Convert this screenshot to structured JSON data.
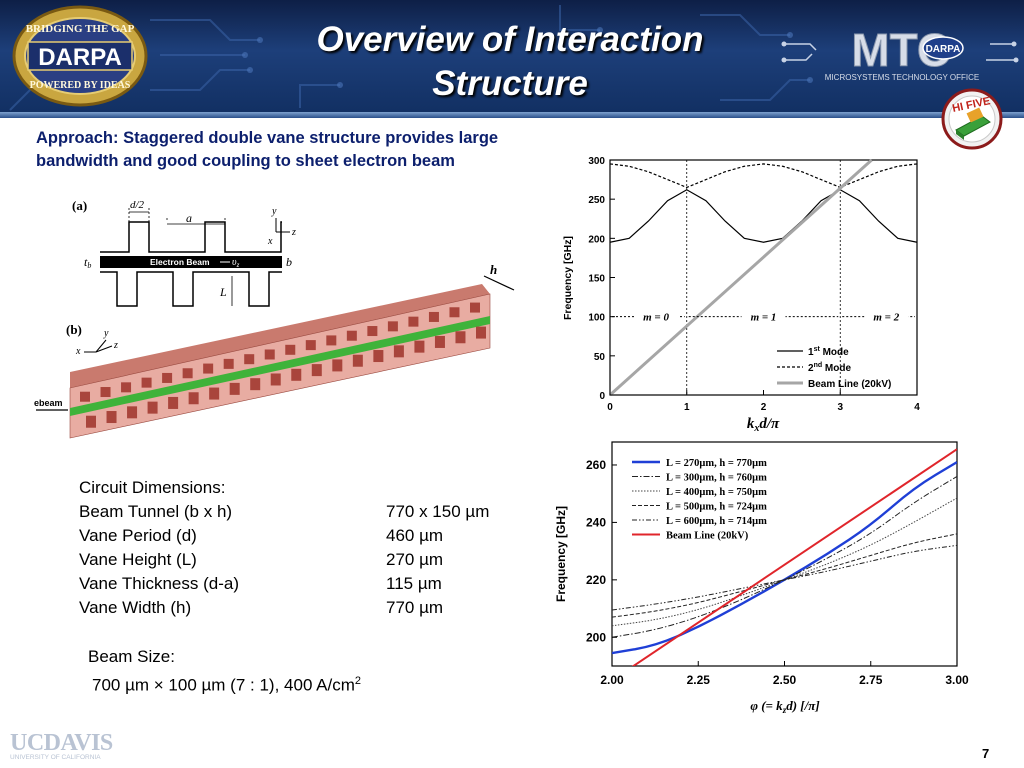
{
  "header": {
    "title_line1": "Overview of  Interaction",
    "title_line2": "Structure",
    "logo_left": {
      "top": "BRIDGING THE GAP",
      "middle": "DARPA",
      "bottom": "POWERED BY IDEAS"
    },
    "logo_right": {
      "mark": "MTO",
      "badge": "DARPA",
      "tagline": "MICROSYSTEMS TECHNOLOGY OFFICE"
    },
    "badge": {
      "text": "HI FIVE"
    }
  },
  "approach": {
    "line1": "Approach: Staggered double vane structure provides large",
    "line2": "bandwidth and good coupling to sheet electron beam"
  },
  "figure_left": {
    "label_a": "(a)",
    "label_b": "(b)",
    "dim_half_d": "d/2",
    "dim_a": "a",
    "axis_y": "y",
    "axis_x": "x",
    "axis_z": "z",
    "dim_tb": "t",
    "dim_tb_sub": "b",
    "dim_b": "b",
    "dim_L": "L",
    "beam_label": "Electron Beam",
    "beam_velocity": "υ",
    "beam_velocity_sub": "z",
    "dim_h": "h",
    "ebeam_label": "ebeam"
  },
  "dispersion_chart": {
    "ylabel": "Frequency [GHz]",
    "xlabel_k": "k",
    "xlabel_sub": "x",
    "xlabel_rest": "d/π",
    "xticks": [
      "0",
      "1",
      "2",
      "3",
      "4"
    ],
    "yticks": [
      "0",
      "50",
      "100",
      "150",
      "200",
      "250",
      "300"
    ],
    "region_labels": [
      "m = 0",
      "m = 1",
      "m = 2"
    ],
    "legend": [
      {
        "pre": "1",
        "sup": "st",
        "post": " Mode"
      },
      {
        "pre": "2",
        "sup": "nd",
        "post": " Mode"
      },
      {
        "pre": "Beam Line (20kV)",
        "sup": "",
        "post": ""
      }
    ]
  },
  "comparison_chart": {
    "ylabel": "Frequency [GHz]",
    "xlabel": "φ (= k",
    "xlabel_sub": "z",
    "xlabel_rest": "d)  [/π]",
    "xticks": [
      "2.00",
      "2.25",
      "2.50",
      "2.75",
      "3.00"
    ],
    "yticks": [
      "200",
      "220",
      "240",
      "260"
    ],
    "legend": [
      "L = 270μm, h = 770μm",
      "L = 300μm, h = 760μm",
      "L = 400μm, h = 750μm",
      "L = 500μm, h = 724μm",
      "L = 600μm, h = 714μm",
      "Beam Line (20kV)"
    ],
    "colors": {
      "series1": "#1f3fd6",
      "beam_line": "#e0252b"
    }
  },
  "dimensions": {
    "heading": "Circuit Dimensions:",
    "rows": [
      {
        "label": "Beam Tunnel (b x h)",
        "value": "770 x 150 µm"
      },
      {
        "label": "Vane Period (d)",
        "value": "460 µm"
      },
      {
        "label": "Vane Height (L)",
        "value": "270 µm"
      },
      {
        "label": "Vane Thickness (d-a)",
        "value": "115 µm"
      },
      {
        "label": "Vane Width (h)",
        "value": "770 µm"
      }
    ]
  },
  "beam_size": {
    "heading": "Beam Size:",
    "value": "700 µm × 100 µm (7 : 1), 400 A/cm",
    "value_sup": "2"
  },
  "footer": {
    "logo_main": "UCDAVIS",
    "logo_sub": "UNIVERSITY OF CALIFORNIA",
    "page": "7"
  },
  "chart_data": [
    {
      "type": "line",
      "ylabel": "Frequency [GHz]",
      "xlabel": "kxd/π",
      "xlim": [
        0,
        4
      ],
      "ylim": [
        0,
        300
      ],
      "series": [
        {
          "name": "1st Mode",
          "x": [
            0,
            0.25,
            0.5,
            0.75,
            1,
            1.25,
            1.5,
            1.75,
            2,
            2.25,
            2.5,
            2.75,
            3,
            3.25,
            3.5,
            3.75,
            4
          ],
          "y": [
            195,
            200,
            222,
            248,
            262,
            248,
            222,
            200,
            195,
            200,
            222,
            248,
            262,
            248,
            222,
            200,
            195
          ]
        },
        {
          "name": "2nd Mode",
          "x": [
            0,
            0.25,
            0.5,
            0.75,
            1,
            1.25,
            1.5,
            1.75,
            2,
            2.25,
            2.5,
            2.75,
            3,
            3.25,
            3.5,
            3.75,
            4
          ],
          "y": [
            295,
            292,
            285,
            275,
            265,
            275,
            285,
            292,
            295,
            292,
            285,
            275,
            265,
            275,
            285,
            292,
            295
          ]
        },
        {
          "name": "Beam Line (20kV)",
          "x": [
            0,
            4
          ],
          "y": [
            0,
            352
          ]
        }
      ],
      "grid": false,
      "legend": "bottom-right"
    },
    {
      "type": "line",
      "ylabel": "Frequency [GHz]",
      "xlabel": "φ (= kzd) [/π]",
      "xlim": [
        2.0,
        3.0
      ],
      "ylim": [
        190,
        268
      ],
      "series": [
        {
          "name": "L = 270μm, h = 770μm",
          "x": [
            2.0,
            2.125,
            2.25,
            2.375,
            2.5,
            2.625,
            2.75,
            2.875,
            3.0
          ],
          "y": [
            194.5,
            197,
            203.5,
            211.5,
            220,
            229,
            239,
            252,
            261
          ]
        },
        {
          "name": "L = 300μm, h = 760μm",
          "x": [
            2.0,
            2.125,
            2.25,
            2.375,
            2.5,
            2.625,
            2.75,
            2.875,
            3.0
          ],
          "y": [
            200,
            202.5,
            207,
            213,
            220,
            227.5,
            236,
            247,
            256
          ]
        },
        {
          "name": "L = 400μm, h = 750μm",
          "x": [
            2.0,
            2.125,
            2.25,
            2.375,
            2.5,
            2.625,
            2.75,
            2.875,
            3.0
          ],
          "y": [
            204,
            206,
            209.5,
            214.5,
            220,
            225.5,
            232,
            240,
            248.5
          ]
        },
        {
          "name": "L = 500μm, h = 724μm",
          "x": [
            2.0,
            2.125,
            2.25,
            2.375,
            2.5,
            2.625,
            2.75,
            2.875,
            3.0
          ],
          "y": [
            207,
            209,
            212,
            216,
            220,
            224,
            228.5,
            233,
            236
          ]
        },
        {
          "name": "L = 600μm, h = 714μm",
          "x": [
            2.0,
            2.125,
            2.25,
            2.375,
            2.5,
            2.625,
            2.75,
            2.875,
            3.0
          ],
          "y": [
            209.5,
            211.5,
            214,
            217,
            220,
            223,
            226.5,
            230,
            232
          ]
        },
        {
          "name": "Beam Line (20kV)",
          "x": [
            2.0,
            3.0
          ],
          "y": [
            185,
            265.5
          ]
        }
      ],
      "grid": false,
      "legend": "top-left"
    }
  ]
}
